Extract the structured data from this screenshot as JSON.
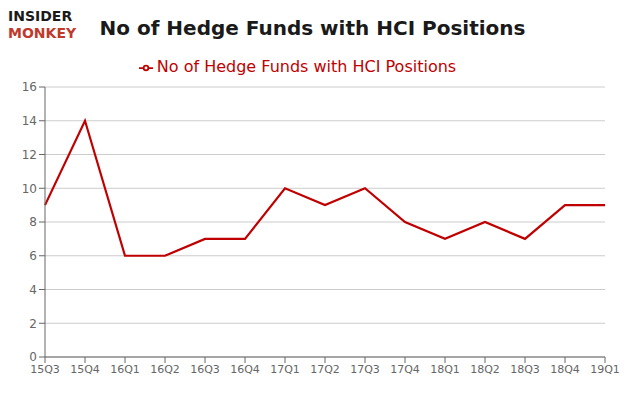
{
  "chart_data": {
    "type": "line",
    "title": "No of Hedge Funds with HCI Positions",
    "annotations": [
      {
        "text": "INSIDER",
        "color": "#1a1a1a"
      },
      {
        "text": "MONKEY",
        "color": "#C0392B"
      }
    ],
    "categories": [
      "15Q3",
      "15Q4",
      "16Q1",
      "16Q2",
      "16Q3",
      "16Q4",
      "17Q1",
      "17Q2",
      "17Q3",
      "17Q4",
      "18Q1",
      "18Q2",
      "18Q3",
      "18Q4",
      "19Q1"
    ],
    "series": [
      {
        "name": "No of Hedge Funds with HCI Positions",
        "color": "#C00000",
        "values": [
          9,
          14,
          6,
          6,
          7,
          7,
          10,
          9,
          10,
          8,
          7,
          8,
          7,
          9,
          9
        ]
      }
    ],
    "ylim": [
      0,
      16
    ],
    "yticks": [
      0,
      2,
      4,
      6,
      8,
      10,
      12,
      14,
      16
    ],
    "grid": true,
    "legend": "top"
  }
}
